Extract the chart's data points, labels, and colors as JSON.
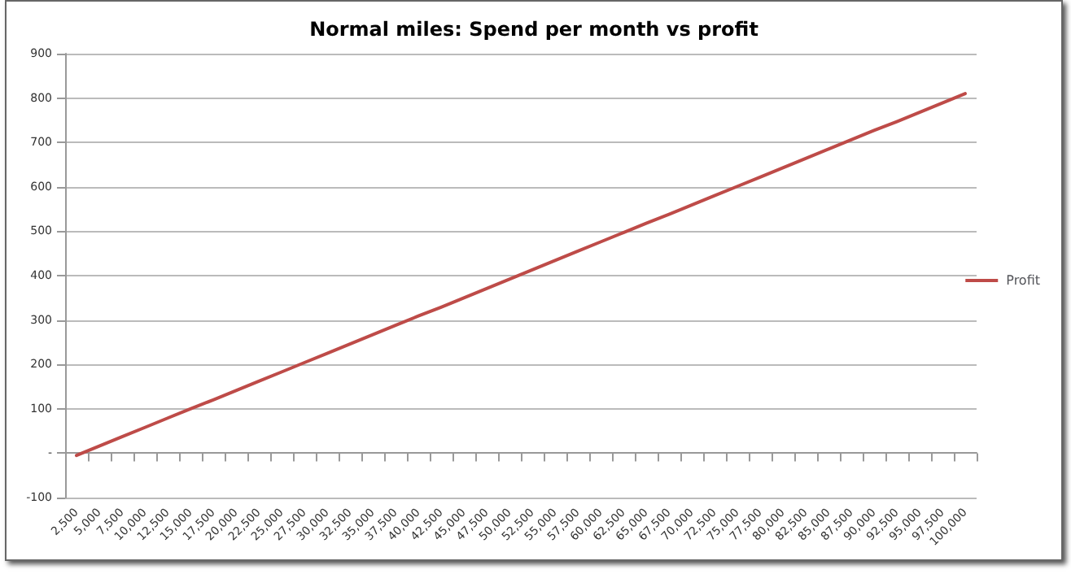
{
  "chart_data": {
    "type": "line",
    "title": "Normal miles: Spend per month vs profit",
    "categories": [
      "2,500",
      "5,000",
      "7,500",
      "10,000",
      "12,500",
      "15,000",
      "17,500",
      "20,000",
      "22,500",
      "25,000",
      "27,500",
      "30,000",
      "32,500",
      "35,000",
      "37,500",
      "40,000",
      "42,500",
      "45,000",
      "47,500",
      "50,000",
      "52,500",
      "55,000",
      "57,500",
      "60,000",
      "62,500",
      "65,000",
      "67,500",
      "70,000",
      "72,500",
      "75,000",
      "77,500",
      "80,000",
      "82,500",
      "85,000",
      "87,500",
      "90,000",
      "92,500",
      "95,000",
      "97,500",
      "100,000"
    ],
    "series": [
      {
        "name": "Profit",
        "color": "#be4b48",
        "values": [
          -5,
          16,
          37,
          58,
          79,
          100,
          120,
          141,
          162,
          183,
          204,
          225,
          246,
          267,
          288,
          309,
          329,
          350,
          371,
          392,
          413,
          434,
          455,
          476,
          497,
          518,
          538,
          559,
          580,
          601,
          622,
          643,
          664,
          685,
          706,
          727,
          747,
          768,
          789,
          810
        ]
      }
    ],
    "ylim": [
      -100,
      900
    ],
    "yticks": [
      -100,
      {
        "value": 0,
        "label": "-"
      },
      100,
      200,
      300,
      400,
      500,
      600,
      700,
      800,
      900
    ],
    "grid": "y",
    "legend": "right",
    "marker": "none",
    "line_style": "solid"
  }
}
